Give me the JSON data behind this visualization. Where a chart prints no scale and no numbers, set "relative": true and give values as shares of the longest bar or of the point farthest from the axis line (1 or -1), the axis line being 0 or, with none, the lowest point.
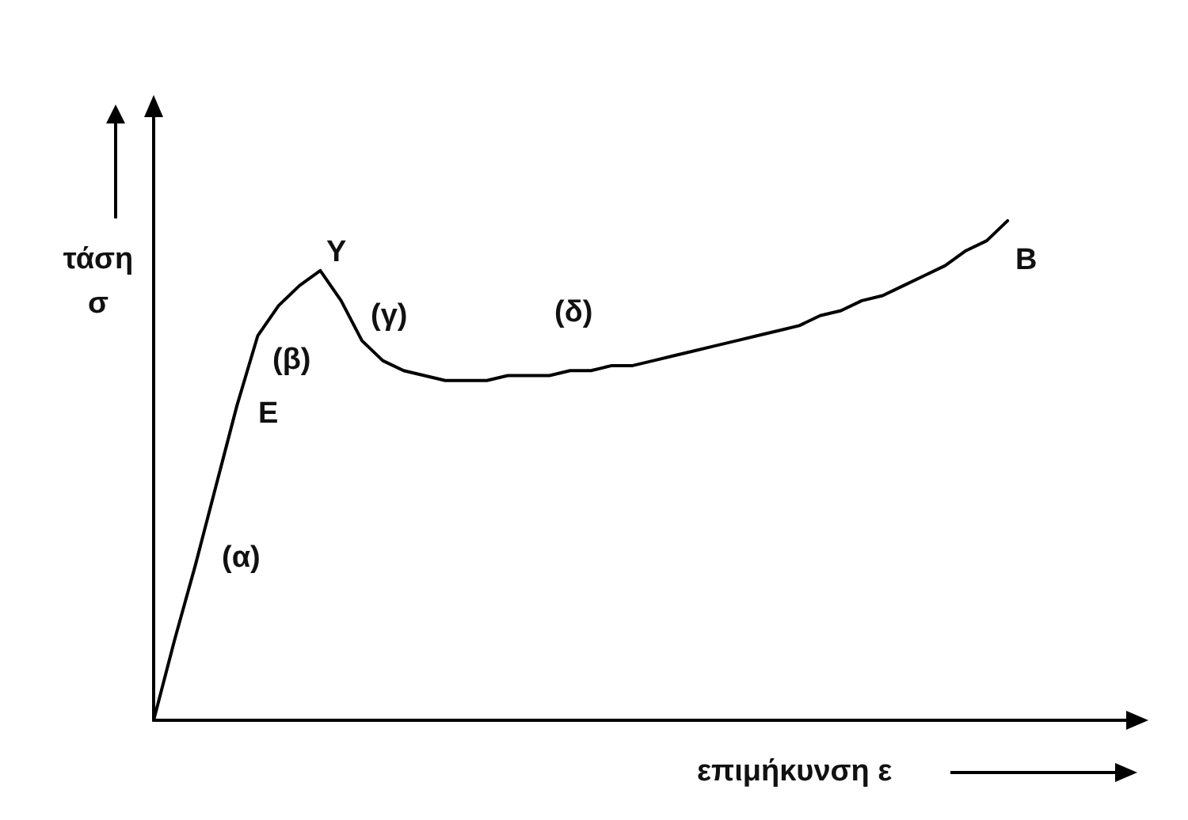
{
  "chart_data": {
    "type": "line",
    "relative": true,
    "xlabel": "επιμήκυνση ε",
    "ylabel": "τάση σ",
    "categories": [
      null,
      null,
      null,
      null,
      null,
      null,
      null,
      null,
      null,
      null,
      null,
      null,
      null,
      null,
      null,
      null,
      null,
      null,
      null,
      null,
      null,
      null,
      null,
      null,
      null,
      null,
      null,
      null,
      null,
      null,
      null,
      null,
      null,
      null,
      null,
      null,
      null,
      null,
      null,
      null,
      null,
      null,
      null,
      null,
      null,
      null,
      null,
      null
    ],
    "values": [
      0,
      0.16,
      0.31,
      0.47,
      0.63,
      0.77,
      0.83,
      0.87,
      0.9,
      0.84,
      0.76,
      0.72,
      0.7,
      0.69,
      0.68,
      0.68,
      0.68,
      0.69,
      0.69,
      0.69,
      0.7,
      0.7,
      0.71,
      0.71,
      0.72,
      0.73,
      0.74,
      0.75,
      0.76,
      0.77,
      0.78,
      0.79,
      0.81,
      0.82,
      0.84,
      0.85,
      0.87,
      0.89,
      0.91,
      0.94,
      0.96,
      1,
      null,
      null,
      null,
      null,
      null,
      null
    ],
    "color": "#000000",
    "marker": "none",
    "line_style": "solid",
    "annotations": [
      "Y",
      "E",
      "B",
      "(α)",
      "(β)",
      "(γ)",
      "(δ)"
    ]
  }
}
